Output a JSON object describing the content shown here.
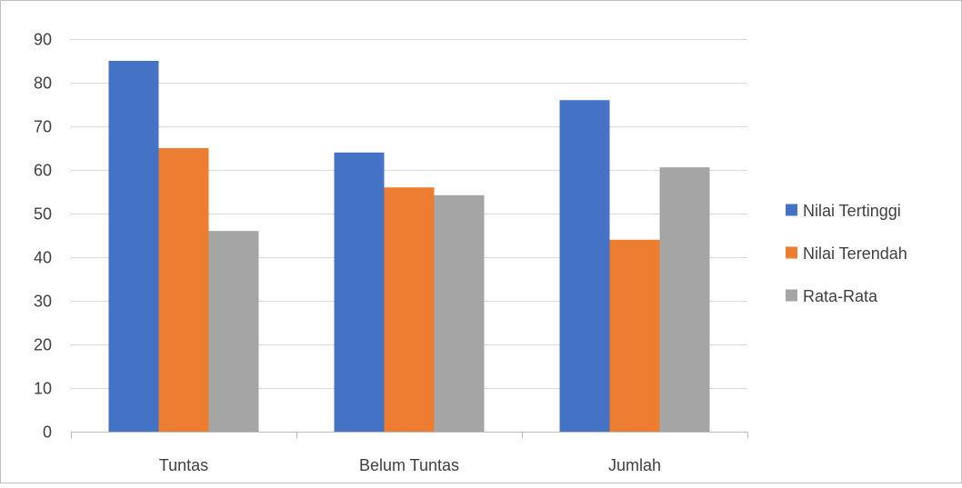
{
  "chart_data": {
    "type": "bar",
    "title": "",
    "xlabel": "",
    "ylabel": "",
    "categories": [
      "Tuntas",
      "Belum Tuntas",
      "Jumlah"
    ],
    "series": [
      {
        "name": "Nilai Tertinggi",
        "values": [
          85,
          64,
          76
        ],
        "color": "#4472C4"
      },
      {
        "name": "Nilai Terendah",
        "values": [
          65,
          56,
          44
        ],
        "color": "#ED7D31"
      },
      {
        "name": "Rata-Rata",
        "values": [
          46,
          54.2,
          60.6
        ],
        "color": "#A5A5A5"
      }
    ],
    "ylim": [
      0,
      90
    ],
    "yticks": [
      0,
      10,
      20,
      30,
      40,
      50,
      60,
      70,
      80,
      90
    ],
    "grid": true,
    "legend_position": "right",
    "colors": {
      "gridline": "#D9D9D9",
      "axis": "#BFBFBF",
      "frame": "#BFBFBF",
      "text": "#404040"
    }
  }
}
